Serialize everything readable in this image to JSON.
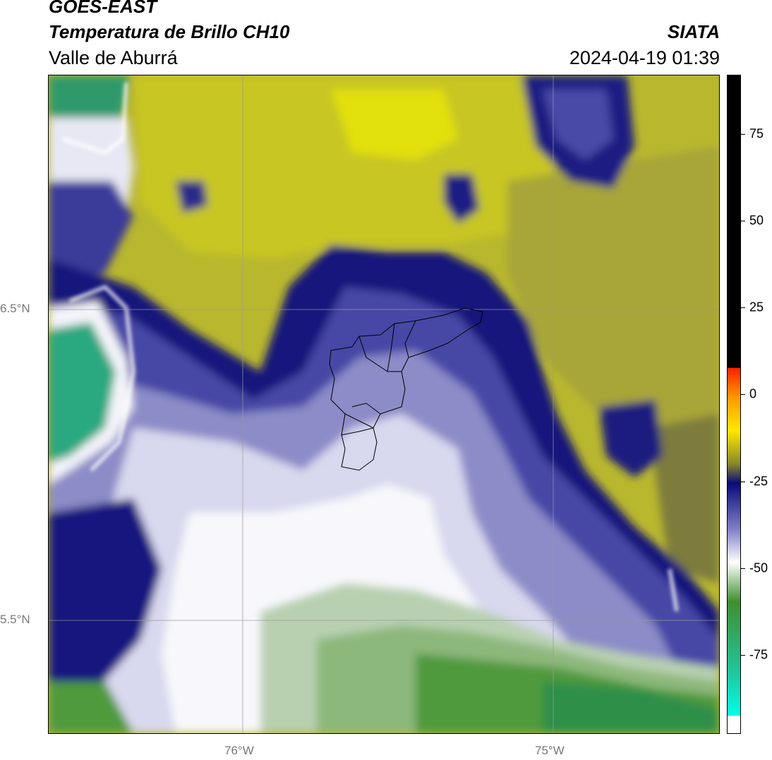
{
  "header": {
    "satellite": "GOES-EAST",
    "product": "Temperatura de Brillo CH10",
    "region": "Valle de Aburrá",
    "brand": "SIATA",
    "timestamp": "2024-04-19 01:39"
  },
  "axes": {
    "lat_labels": [
      "6.5°N",
      "5.5°N"
    ],
    "lon_labels": [
      "76°W",
      "75°W"
    ]
  },
  "colorbar": {
    "ticks": [
      "75",
      "50",
      "25",
      "0",
      "-25",
      "-50",
      "-75"
    ],
    "colors": {
      "black": "#000000",
      "red": "#ff2000",
      "orange": "#ff9a00",
      "yellow": "#ffe800",
      "olive": "#8a8a2a",
      "navy": "#0a0a7a",
      "lavender": "#8080c8",
      "white": "#ffffff",
      "green": "#3f8f2f",
      "teal": "#20c8a0",
      "cyan": "#00ffe8"
    }
  },
  "map_colors": {
    "yellow_bright": "#e2e00e",
    "yellow": "#c5c326",
    "olive": "#a9a735",
    "olive_dark": "#7a7838",
    "navy": "#10107a",
    "blue": "#3c3c9a",
    "lavender": "#8c8cc8",
    "pale": "#d8d8ee",
    "white": "#f8f8fc",
    "sage": "#b8d0b0",
    "green_light": "#8db87c",
    "green": "#4f9a3c",
    "teal": "#2aa880"
  }
}
